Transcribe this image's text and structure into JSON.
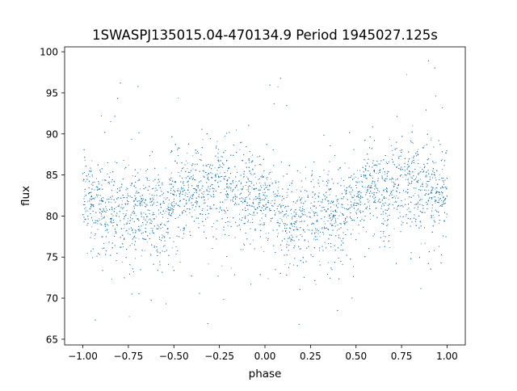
{
  "chart_data": {
    "type": "scatter",
    "title": "1SWASPJ135015.04-470134.9 Period 1945027.125s",
    "xlabel": "phase",
    "ylabel": "flux",
    "xlim": [
      -1.1,
      1.1
    ],
    "ylim": [
      64.3,
      100.6
    ],
    "grid": false,
    "marker_color": "#1f77b4",
    "x_ticks": [
      -1.0,
      -0.75,
      -0.5,
      -0.25,
      0.0,
      0.25,
      0.5,
      0.75,
      1.0
    ],
    "x_tick_labels": [
      "−1.00",
      "−0.75",
      "−0.50",
      "−0.25",
      "0.00",
      "0.25",
      "0.50",
      "0.75",
      "1.00"
    ],
    "y_ticks": [
      65,
      70,
      75,
      80,
      85,
      90,
      95,
      100
    ],
    "y_tick_labels": [
      "65",
      "70",
      "75",
      "80",
      "85",
      "90",
      "95",
      "100"
    ],
    "series": [
      {
        "phase_flux_profile": {
          "phase": [
            -1.0,
            -0.95,
            -0.9,
            -0.85,
            -0.8,
            -0.75,
            -0.7,
            -0.65,
            -0.6,
            -0.55,
            -0.5,
            -0.45,
            -0.4,
            -0.35,
            -0.3,
            -0.25,
            -0.2,
            -0.15,
            -0.1,
            -0.05,
            0.0,
            0.05,
            0.1,
            0.15,
            0.2,
            0.25,
            0.3,
            0.35,
            0.4,
            0.45,
            0.5,
            0.55,
            0.6,
            0.65,
            0.7,
            0.75,
            0.8,
            0.85,
            0.9,
            0.95,
            1.0
          ],
          "mean_flux": [
            83.5,
            82.5,
            81.5,
            81.0,
            80.5,
            80.8,
            81.0,
            81.5,
            80.0,
            80.5,
            82.0,
            83.0,
            83.5,
            83.0,
            83.5,
            84.0,
            84.0,
            83.0,
            83.0,
            82.5,
            82.5,
            81.5,
            80.0,
            79.5,
            80.0,
            80.8,
            81.0,
            81.2,
            80.0,
            81.0,
            82.0,
            83.0,
            83.5,
            83.0,
            83.5,
            84.0,
            84.0,
            83.0,
            83.5,
            83.5,
            83.5
          ],
          "scatter_sd": [
            2.2,
            2.5,
            2.5,
            2.5,
            2.4,
            2.4,
            2.5,
            2.5,
            2.5,
            2.5,
            2.4,
            2.3,
            2.3,
            2.4,
            2.4,
            2.6,
            2.8,
            2.6,
            2.3,
            2.2,
            2.2,
            2.4,
            2.6,
            2.6,
            2.4,
            2.4,
            2.4,
            2.5,
            2.5,
            2.5,
            2.4,
            2.3,
            2.3,
            2.4,
            2.5,
            2.7,
            2.9,
            2.8,
            2.5,
            2.4,
            2.2
          ]
        },
        "outlier_range": [
          66,
          99
        ]
      }
    ]
  }
}
